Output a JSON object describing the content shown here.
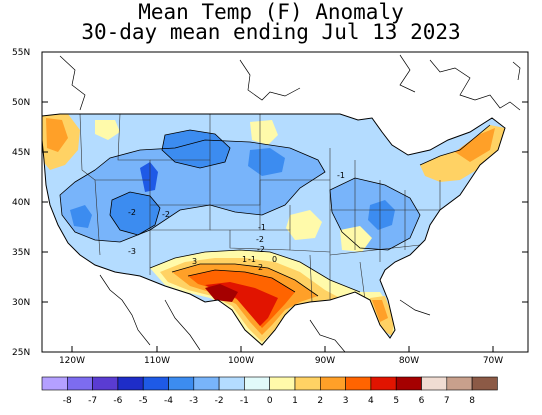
{
  "title": {
    "line1": "Mean Temp (F) Anomaly",
    "line2": "30-day mean ending Jul 13 2023"
  },
  "axes": {
    "lat_labels": [
      "55N",
      "50N",
      "45N",
      "40N",
      "35N",
      "30N",
      "25N"
    ],
    "lon_labels": [
      "120W",
      "110W",
      "100W",
      "90W",
      "80W",
      "70W"
    ]
  },
  "contour_labels": [
    "-1",
    "-2",
    "-2",
    "-2",
    "-3",
    "-2",
    "-1",
    "0",
    "1",
    "2",
    "3",
    "-1"
  ],
  "legend": {
    "labels": [
      "-8",
      "-7",
      "-6",
      "-5",
      "-4",
      "-3",
      "-2",
      "-1",
      "0",
      "1",
      "2",
      "3",
      "4",
      "5",
      "6",
      "7",
      "8"
    ],
    "colors": [
      "#b4a0ff",
      "#7d6cf0",
      "#5a3cd2",
      "#1e2dc8",
      "#1e5ae6",
      "#3c8cf0",
      "#78b4fa",
      "#b4dcff",
      "#e1fafa",
      "#fffaaa",
      "#ffd264",
      "#ffa028",
      "#ff6400",
      "#e11400",
      "#a50000",
      "#f0dcd2",
      "#c8a08c",
      "#8c5a46"
    ]
  }
}
